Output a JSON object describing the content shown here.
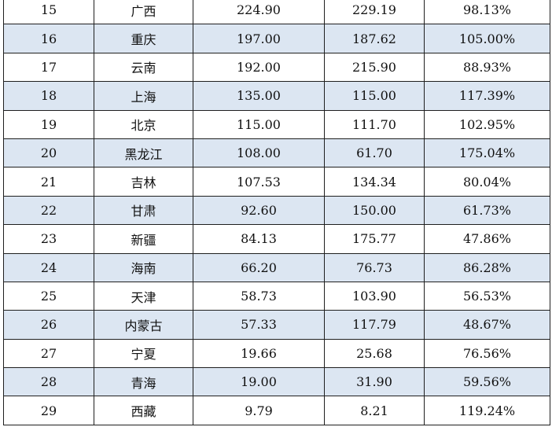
{
  "table": {
    "rows": [
      {
        "rank": "15",
        "province": "广西",
        "value_a": "224.90",
        "value_b": "229.19",
        "ratio": "98.13%"
      },
      {
        "rank": "16",
        "province": "重庆",
        "value_a": "197.00",
        "value_b": "187.62",
        "ratio": "105.00%"
      },
      {
        "rank": "17",
        "province": "云南",
        "value_a": "192.00",
        "value_b": "215.90",
        "ratio": "88.93%"
      },
      {
        "rank": "18",
        "province": "上海",
        "value_a": "135.00",
        "value_b": "115.00",
        "ratio": "117.39%"
      },
      {
        "rank": "19",
        "province": "北京",
        "value_a": "115.00",
        "value_b": "111.70",
        "ratio": "102.95%"
      },
      {
        "rank": "20",
        "province": "黑龙江",
        "value_a": "108.00",
        "value_b": "61.70",
        "ratio": "175.04%"
      },
      {
        "rank": "21",
        "province": "吉林",
        "value_a": "107.53",
        "value_b": "134.34",
        "ratio": "80.04%"
      },
      {
        "rank": "22",
        "province": "甘肃",
        "value_a": "92.60",
        "value_b": "150.00",
        "ratio": "61.73%"
      },
      {
        "rank": "23",
        "province": "新疆",
        "value_a": "84.13",
        "value_b": "175.77",
        "ratio": "47.86%"
      },
      {
        "rank": "24",
        "province": "海南",
        "value_a": "66.20",
        "value_b": "76.73",
        "ratio": "86.28%"
      },
      {
        "rank": "25",
        "province": "天津",
        "value_a": "58.73",
        "value_b": "103.90",
        "ratio": "56.53%"
      },
      {
        "rank": "26",
        "province": "内蒙古",
        "value_a": "57.33",
        "value_b": "117.79",
        "ratio": "48.67%"
      },
      {
        "rank": "27",
        "province": "宁夏",
        "value_a": "19.66",
        "value_b": "25.68",
        "ratio": "76.56%"
      },
      {
        "rank": "28",
        "province": "青海",
        "value_a": "19.00",
        "value_b": "31.90",
        "ratio": "59.56%"
      },
      {
        "rank": "29",
        "province": "西藏",
        "value_a": "9.79",
        "value_b": "8.21",
        "ratio": "119.24%"
      }
    ],
    "stripe_color": "#dce6f2",
    "border_color": "#1f1f1f"
  }
}
